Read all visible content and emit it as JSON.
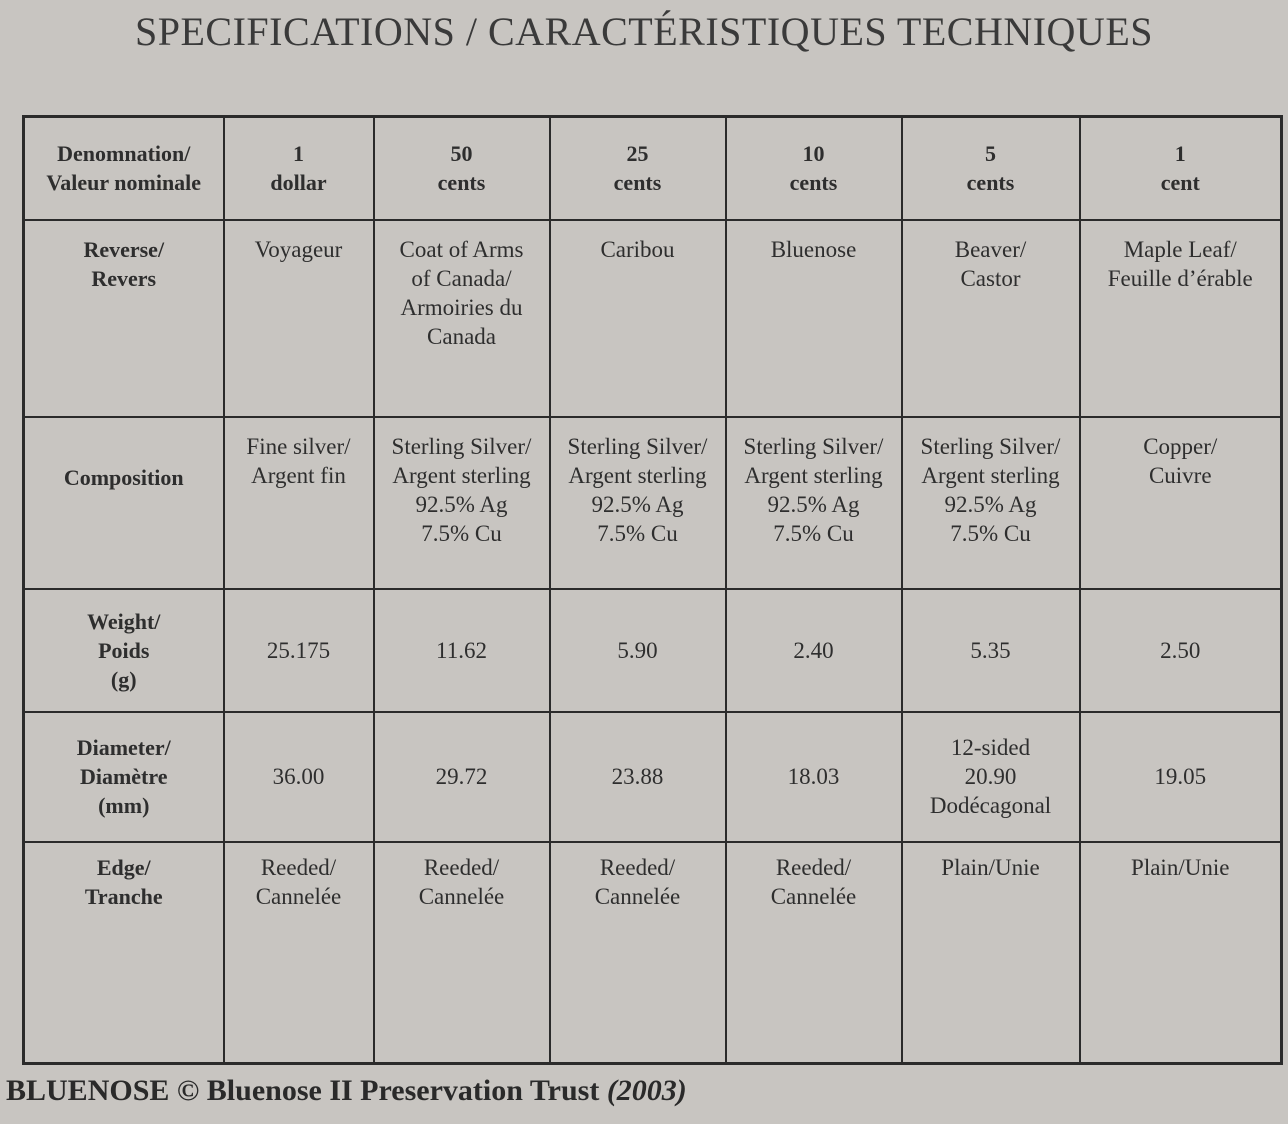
{
  "title": "SPECIFICATIONS / CARACTÉRISTIQUES TECHNIQUES",
  "table": {
    "rows": [
      [
        [
          "Denomnation/",
          "Valeur nominale"
        ],
        [
          "1",
          "dollar"
        ],
        [
          "50",
          "cents"
        ],
        [
          "25",
          "cents"
        ],
        [
          "10",
          "cents"
        ],
        [
          "5",
          "cents"
        ],
        [
          "1",
          "cent"
        ]
      ],
      [
        [
          "Reverse/",
          "Revers"
        ],
        [
          "Voyageur"
        ],
        [
          "Coat of Arms",
          "of Canada/",
          "Armoiries du",
          "Canada"
        ],
        [
          "Caribou"
        ],
        [
          "Bluenose"
        ],
        [
          "Beaver/",
          "Castor"
        ],
        [
          "Maple Leaf/",
          "Feuille d’érable"
        ]
      ],
      [
        [
          "Composition"
        ],
        [
          "Fine silver/",
          "Argent fin"
        ],
        [
          "Sterling Silver/",
          "Argent sterling",
          "92.5% Ag",
          "7.5% Cu"
        ],
        [
          "Sterling Silver/",
          "Argent sterling",
          "92.5% Ag",
          "7.5% Cu"
        ],
        [
          "Sterling Silver/",
          "Argent sterling",
          "92.5% Ag",
          "7.5% Cu"
        ],
        [
          "Sterling Silver/",
          "Argent sterling",
          "92.5% Ag",
          "7.5% Cu"
        ],
        [
          "Copper/",
          "Cuivre"
        ]
      ],
      [
        [
          "Weight/",
          "Poids",
          "(g)"
        ],
        [
          "25.175"
        ],
        [
          "11.62"
        ],
        [
          "5.90"
        ],
        [
          "2.40"
        ],
        [
          "5.35"
        ],
        [
          "2.50"
        ]
      ],
      [
        [
          "Diameter/",
          "Diamètre",
          "(mm)"
        ],
        [
          "36.00"
        ],
        [
          "29.72"
        ],
        [
          "23.88"
        ],
        [
          "18.03"
        ],
        [
          "12-sided",
          "20.90",
          "Dodécagonal"
        ],
        [
          "19.05"
        ]
      ],
      [
        [
          "Edge/",
          "Tranche"
        ],
        [
          "Reeded/",
          "Cannelée"
        ],
        [
          "Reeded/",
          "Cannelée"
        ],
        [
          "Reeded/",
          "Cannelée"
        ],
        [
          "Reeded/",
          "Cannelée"
        ],
        [
          "Plain/Unie"
        ],
        [
          "Plain/Unie"
        ]
      ]
    ]
  },
  "footer": {
    "text": "BLUENOSE © Bluenose II Preservation Trust",
    "year": "(2003)"
  }
}
